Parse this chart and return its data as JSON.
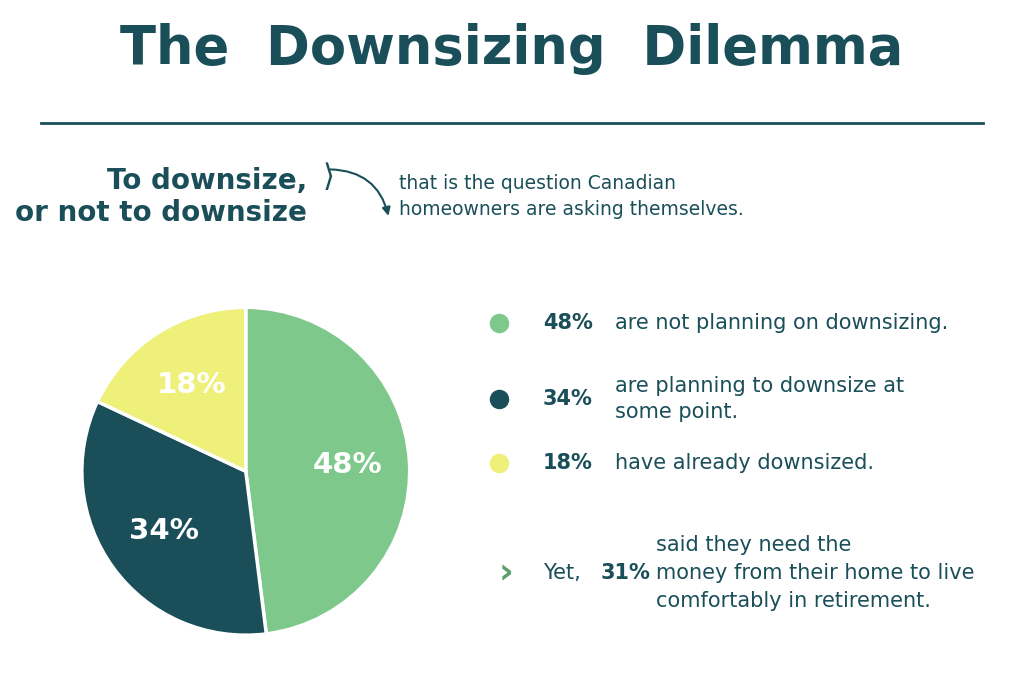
{
  "slices": [
    48,
    34,
    18
  ],
  "slice_colors": [
    "#7dc88a",
    "#1a4f5a",
    "#eef07a"
  ],
  "slice_labels": [
    "48%",
    "34%",
    "18%"
  ],
  "background_color": "#ffffff",
  "panel_color": "#e5e5e5",
  "text_color": "#1a4f5a",
  "label_color": "#ffffff",
  "green_color": "#7dc88a",
  "dark_teal": "#1a4f5a",
  "yellow_color": "#eef07a",
  "arrow_color": "#5c9e6e",
  "title_fontsize": 38,
  "subtitle_fontsize": 20,
  "legend_fontsize": 15,
  "annotation_fontsize": 15
}
